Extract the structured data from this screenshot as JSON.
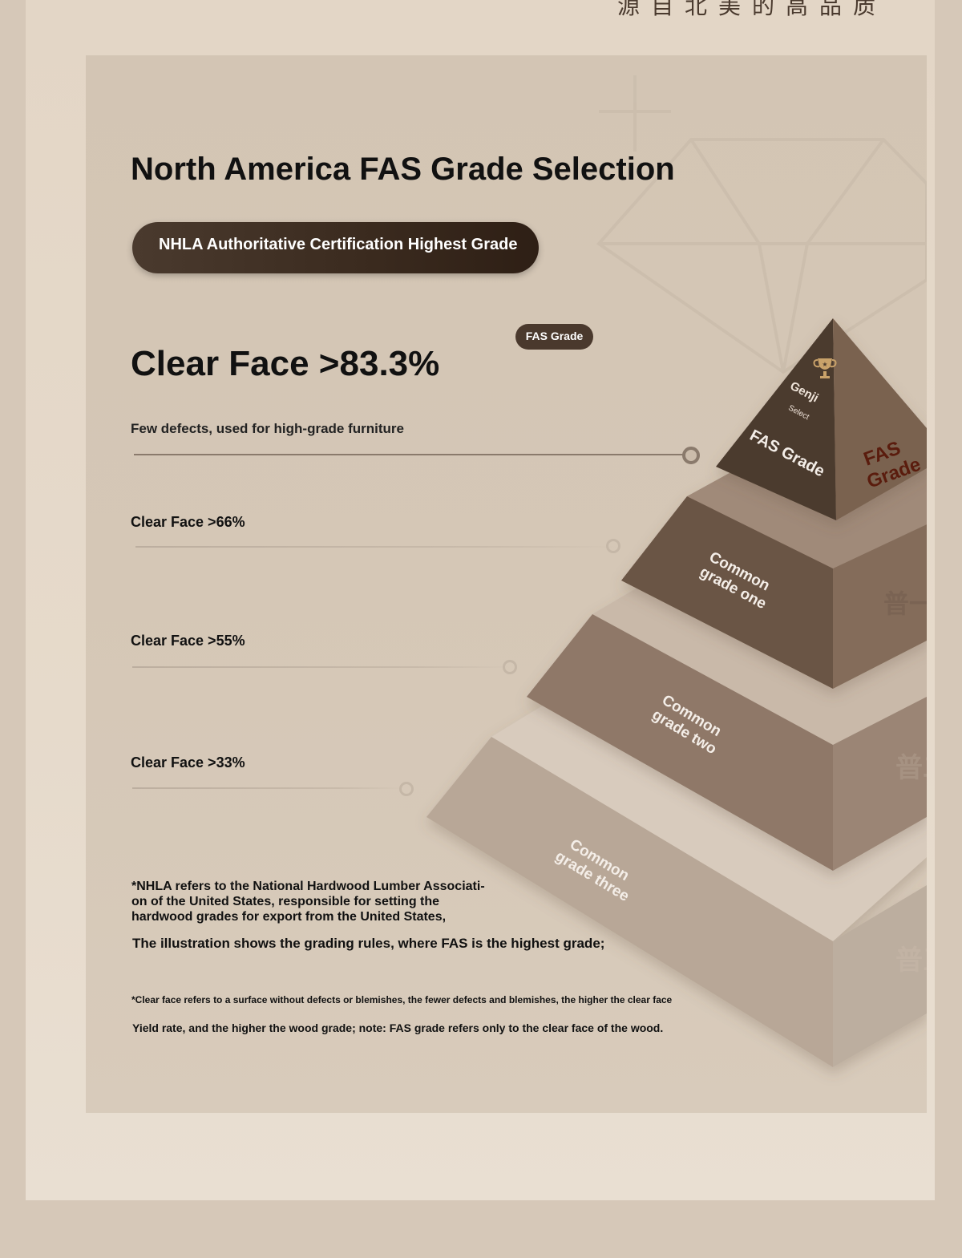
{
  "header": {
    "partial_text": "源自北美的高品质"
  },
  "title": "North America FAS Grade Selection",
  "certification_pill": "NHLA Authoritative Certification Highest Grade",
  "badge": "FAS Grade",
  "fas": {
    "clear_face": "Clear Face >83.3%",
    "description": "Few defects, used for high-grade furniture"
  },
  "grades": [
    {
      "clear_face": "Clear Face >66%"
    },
    {
      "clear_face": "Clear Face >55%"
    },
    {
      "clear_face": "Clear Face >33%"
    }
  ],
  "pyramid": {
    "top_brand": "Genji",
    "top_select": "Select",
    "top_front_label": "FAS Grade",
    "top_side_label_1": "FAS",
    "top_side_label_2": "Grade",
    "tier1_line1": "Common",
    "tier1_line2": "grade one",
    "tier2_line1": "Common",
    "tier2_line2": "grade two",
    "tier3_line1": "Common",
    "tier3_line2": "grade three",
    "side_glyph_1": "普一",
    "side_glyph_2": "普二",
    "side_glyph_3": "普三",
    "trophy_icon": "trophy-icon"
  },
  "notes": {
    "nhla_line1": "*NHLA refers to the National Hardwood Lumber Associati-",
    "nhla_line2": "on of the United States, responsible for setting the",
    "nhla_line3": "hardwood grades for export from the United States,",
    "illustration": "The illustration shows the grading rules, where FAS is the highest grade;",
    "clear_face_def": "*Clear face refers to a surface without defects or blemishes, the fewer defects and blemishes, the higher the clear face",
    "yield": "Yield rate, and the higher the wood grade; note: FAS grade refers only to the clear face of the wood."
  },
  "colors": {
    "dark_brown": "#4a392d",
    "mid_brown": "#6b5444",
    "light_brown": "#8c7766",
    "pale_brown": "#b6a697",
    "panel_bg": "#d4c6b5"
  }
}
